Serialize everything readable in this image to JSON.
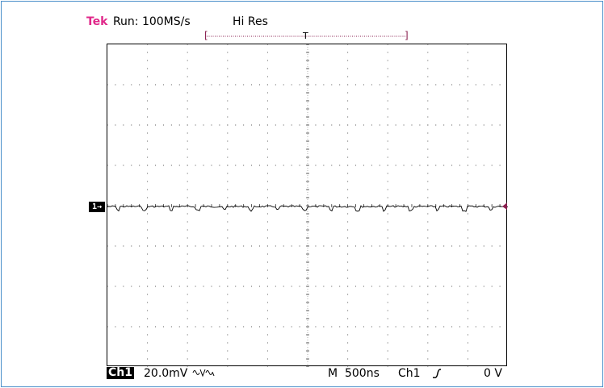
{
  "header": {
    "brand": "Tek",
    "brand_color": "#e0288a",
    "status": "Run: 100MS/s",
    "acq_mode": "Hi Res"
  },
  "record_indicator": {
    "left_bracket": "[",
    "trigger_marker": "T",
    "right_bracket": "]",
    "color": "#8a2050"
  },
  "channel_marker": {
    "label": "1→"
  },
  "footer": {
    "channel": "Ch1",
    "volts_per_div": "20.0mV",
    "bandwidth_icon": "bandwidth-limit-icon",
    "timebase": "M  500ns",
    "trigger_source": "Ch1",
    "trigger_slope_icon": "rising-edge-icon",
    "trigger_level": "0 V"
  },
  "display": {
    "divisions_x": 10,
    "divisions_y": 8,
    "trace_color": "#000000",
    "trigger_level_marker_color": "#8a2050"
  }
}
